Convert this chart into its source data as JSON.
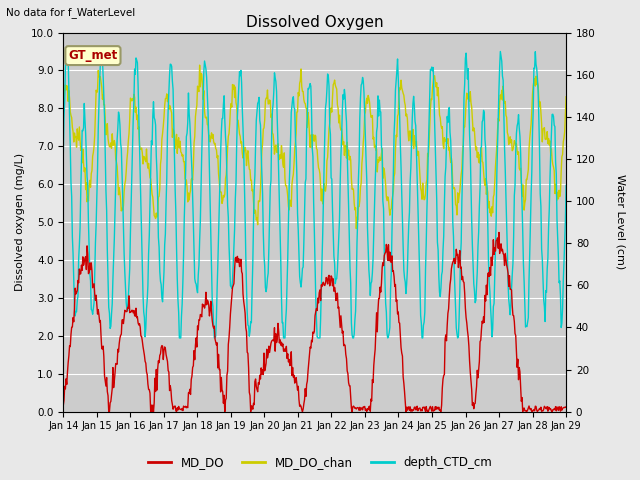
{
  "title": "Dissolved Oxygen",
  "top_left_text": "No data for f_WaterLevel",
  "annotation_box_text": "GT_met",
  "ylabel_left": "Dissolved oxygen (mg/L)",
  "ylabel_right": "Water Level (cm)",
  "ylim_left": [
    0.0,
    10.0
  ],
  "ylim_right": [
    0,
    180
  ],
  "yticks_left": [
    0.0,
    1.0,
    2.0,
    3.0,
    4.0,
    5.0,
    6.0,
    7.0,
    8.0,
    9.0,
    10.0
  ],
  "yticks_right": [
    0,
    20,
    40,
    60,
    80,
    100,
    120,
    140,
    160,
    180
  ],
  "xtick_labels": [
    "Jan 14",
    "Jan 15",
    "Jan 16",
    "Jan 17",
    "Jan 18",
    "Jan 19",
    "Jan 20",
    "Jan 21",
    "Jan 22",
    "Jan 23",
    "Jan 24",
    "Jan 25",
    "Jan 26",
    "Jan 27",
    "Jan 28",
    "Jan 29"
  ],
  "colors": {
    "MD_DO": "#cc0000",
    "MD_DO_chan": "#cccc00",
    "depth_CTD_cm": "#00cccc",
    "fig_bg": "#e8e8e8",
    "plot_bg": "#cccccc",
    "annotation_box_bg": "#ffffcc",
    "annotation_box_edge": "#999966",
    "annotation_text": "#aa0000"
  },
  "legend_labels": [
    "MD_DO",
    "MD_DO_chan",
    "depth_CTD_cm"
  ],
  "lw_do": 1.0,
  "lw_chan": 1.0,
  "lw_depth": 1.0
}
